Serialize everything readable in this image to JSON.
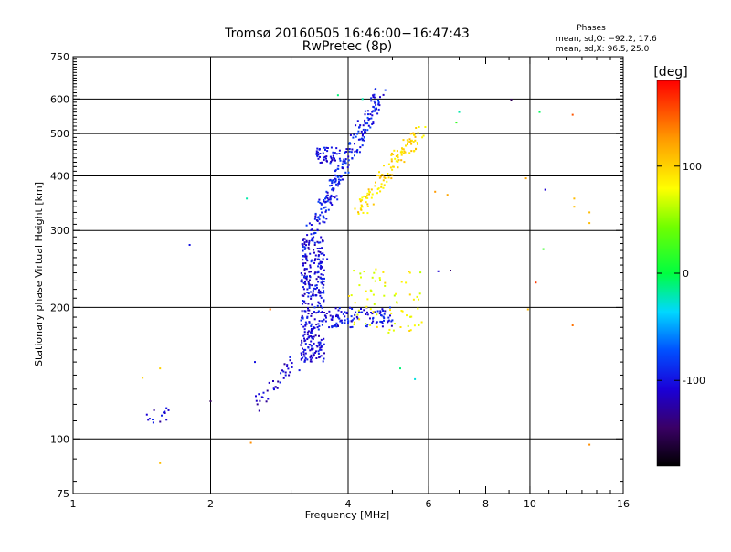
{
  "chart_data": {
    "type": "scatter",
    "title": "Tromsø 20160505 16:46:00−16:47:43",
    "subtitle": "RwPretec (8p)",
    "xlabel": "Frequency [MHz]",
    "ylabel": "Stationary phase Virtual Height [km]",
    "x_scale": "log",
    "y_scale": "log",
    "xlim": [
      1,
      16
    ],
    "ylim": [
      75,
      750
    ],
    "x_ticks": [
      1,
      2,
      4,
      6,
      8,
      10,
      16
    ],
    "y_ticks": [
      75,
      100,
      200,
      300,
      400,
      500,
      600,
      750
    ],
    "x_gridlines": [
      2,
      4,
      6,
      10
    ],
    "y_gridlines": [
      100,
      200,
      300,
      400,
      500,
      600
    ],
    "grid": true,
    "stats": {
      "title": "Phases",
      "line_o": "mean, sd,O:  −92.2,  17.6",
      "line_x": "mean, sd,X:   96.5,  25.0"
    },
    "colorbar": {
      "label": "[deg]",
      "ticks": [
        100,
        0,
        -100
      ],
      "range": [
        -180,
        180
      ]
    },
    "traces": [
      {
        "desc": "low cluster",
        "x_range": [
          1.45,
          1.65
        ],
        "y_range": [
          108,
          118
        ],
        "phase": -110,
        "n": 14
      },
      {
        "desc": "rising trace",
        "x_range": [
          2.55,
          3.1
        ],
        "y_range": [
          120,
          150
        ],
        "phase": -110,
        "n": 38
      },
      {
        "desc": "E/F1 layer cluster",
        "x_range": [
          3.15,
          3.55
        ],
        "y_range": [
          150,
          290
        ],
        "phase": -105,
        "n": 340
      },
      {
        "desc": "F1 band",
        "x_range": [
          3.55,
          5.0
        ],
        "y_range": [
          180,
          200
        ],
        "phase": -100,
        "n": 110
      },
      {
        "desc": "F2 O-mode trace",
        "x_range": [
          3.3,
          4.7
        ],
        "y_range": [
          290,
          620
        ],
        "phase": -95,
        "n": 230
      },
      {
        "desc": "sporadic blob",
        "x_range": [
          3.4,
          3.85
        ],
        "y_range": [
          428,
          465
        ],
        "phase": -100,
        "n": 45
      },
      {
        "desc": "F2 X-mode trace",
        "x_range": [
          4.2,
          5.8
        ],
        "y_range": [
          330,
          520
        ],
        "phase": 95,
        "n": 130
      },
      {
        "desc": "X-mode band",
        "x_range": [
          4.0,
          5.8
        ],
        "y_range": [
          175,
          245
        ],
        "phase": 80,
        "n": 70
      }
    ],
    "isolated_points": [
      {
        "x": 9.1,
        "y": 598,
        "phase": -150
      },
      {
        "x": 10.5,
        "y": 560,
        "phase": -5
      },
      {
        "x": 12.4,
        "y": 552,
        "phase": 150
      },
      {
        "x": 7.0,
        "y": 560,
        "phase": -20
      },
      {
        "x": 6.9,
        "y": 530,
        "phase": 20
      },
      {
        "x": 10.8,
        "y": 372,
        "phase": -110
      },
      {
        "x": 9.8,
        "y": 395,
        "phase": 120
      },
      {
        "x": 12.5,
        "y": 355,
        "phase": 110
      },
      {
        "x": 12.5,
        "y": 340,
        "phase": 110
      },
      {
        "x": 13.5,
        "y": 330,
        "phase": 110
      },
      {
        "x": 13.5,
        "y": 312,
        "phase": 110
      },
      {
        "x": 10.7,
        "y": 272,
        "phase": 20
      },
      {
        "x": 6.2,
        "y": 368,
        "phase": 125
      },
      {
        "x": 6.6,
        "y": 362,
        "phase": 120
      },
      {
        "x": 6.3,
        "y": 242,
        "phase": -110
      },
      {
        "x": 6.7,
        "y": 243,
        "phase": -140
      },
      {
        "x": 10.3,
        "y": 228,
        "phase": 160
      },
      {
        "x": 9.9,
        "y": 198,
        "phase": 110
      },
      {
        "x": 12.4,
        "y": 182,
        "phase": 140
      },
      {
        "x": 1.8,
        "y": 278,
        "phase": -100
      },
      {
        "x": 2.4,
        "y": 355,
        "phase": -20
      },
      {
        "x": 3.6,
        "y": 258,
        "phase": -100
      },
      {
        "x": 2.7,
        "y": 198,
        "phase": 140
      },
      {
        "x": 2.5,
        "y": 150,
        "phase": -100
      },
      {
        "x": 2.0,
        "y": 122,
        "phase": -150
      },
      {
        "x": 1.42,
        "y": 138,
        "phase": 100
      },
      {
        "x": 1.55,
        "y": 145,
        "phase": 100
      },
      {
        "x": 2.45,
        "y": 98,
        "phase": 130
      },
      {
        "x": 1.55,
        "y": 88,
        "phase": 110
      },
      {
        "x": 13.5,
        "y": 97,
        "phase": 130
      },
      {
        "x": 4.3,
        "y": 600,
        "phase": -20
      },
      {
        "x": 3.8,
        "y": 612,
        "phase": -10
      },
      {
        "x": 5.2,
        "y": 145,
        "phase": -10
      },
      {
        "x": 5.6,
        "y": 137,
        "phase": -30
      }
    ]
  }
}
